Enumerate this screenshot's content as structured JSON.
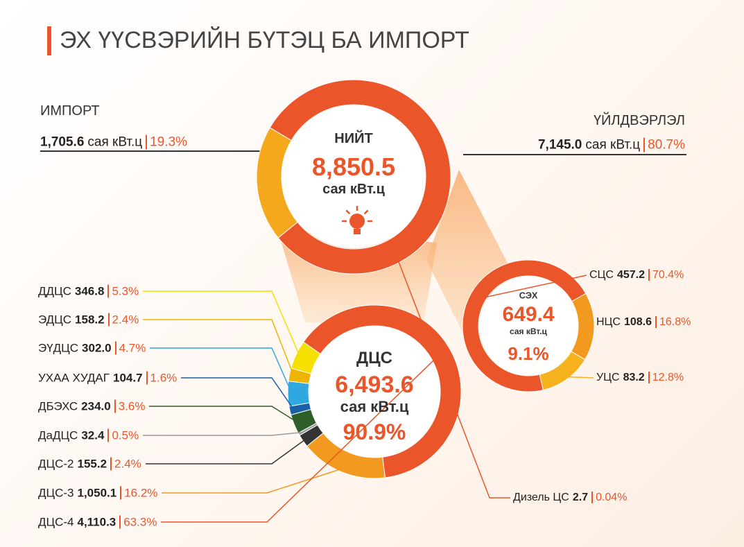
{
  "title": "ЭХ ҮҮСВЭРИЙН БҮТЭЦ БА ИМПОРТ",
  "chart_data": [
    {
      "type": "donut",
      "center_title": "НИЙТ",
      "total": 8850.5,
      "total_label": "8,850.5",
      "unit": "сая кВт.ц",
      "categories": [
        "ИМПОРТ",
        "ҮЙЛДВЭРЛЭЛ"
      ],
      "values": [
        1705.6,
        7145.0
      ],
      "value_labels": [
        "1,705.6",
        "7,145.0"
      ],
      "shares": [
        19.3,
        80.7
      ],
      "share_labels": [
        "19.3%",
        "80.7%"
      ],
      "colors": [
        "#f5a81c",
        "#ea5529"
      ],
      "note": {
        "name": "Дизель ЦС",
        "value": 2.7,
        "share": 0.04,
        "share_label": "0.04%"
      }
    },
    {
      "type": "donut",
      "center_title": "ДЦС",
      "total": 6493.6,
      "total_label": "6,493.6",
      "unit": "сая кВт.ц",
      "share": 90.9,
      "share_label": "90.9%",
      "categories": [
        "ДДЦС",
        "ЭДЦС",
        "ЭҮДЦС",
        "УХАА ХУДАГ",
        "ДБЭХС",
        "ДаДЦС",
        "ДЦС-2",
        "ДЦС-3",
        "ДЦС-4"
      ],
      "values": [
        346.8,
        158.2,
        302.0,
        104.7,
        234.0,
        32.4,
        155.2,
        1050.1,
        4110.3
      ],
      "value_labels": [
        "346.8",
        "158.2",
        "302.0",
        "104.7",
        "234.0",
        "32.4",
        "155.2",
        "1,050.1",
        "4,110.3"
      ],
      "shares": [
        5.3,
        2.4,
        4.7,
        1.6,
        3.6,
        0.5,
        2.4,
        16.2,
        63.3
      ],
      "share_labels": [
        "5.3%",
        "2.4%",
        "4.7%",
        "1.6%",
        "3.6%",
        "0.5%",
        "2.4%",
        "16.2%",
        "63.3%"
      ],
      "colors": [
        "#f5e000",
        "#f0b400",
        "#2fa8e0",
        "#1a5fa8",
        "#2e5e2a",
        "#9a9a9a",
        "#333333",
        "#f29a1f",
        "#ea5529"
      ]
    },
    {
      "type": "donut",
      "center_title": "СЭХ",
      "total": 649.4,
      "unit": "сая кВт.ц",
      "share": 9.1,
      "share_label": "9.1%",
      "categories": [
        "СЦС",
        "НЦС",
        "УЦС"
      ],
      "values": [
        457.2,
        108.6,
        83.2
      ],
      "shares": [
        70.4,
        16.8,
        12.8
      ],
      "share_labels": [
        "70.4%",
        "16.8%",
        "12.8%"
      ],
      "colors": [
        "#ea5529",
        "#f29a1f",
        "#f5b21c"
      ]
    }
  ]
}
